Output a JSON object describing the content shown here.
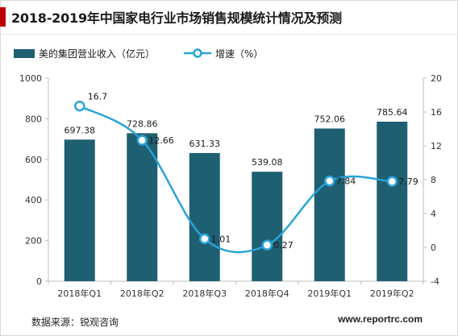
{
  "title": "2018-2019年中国家电行业市场销售规模统计情况及预测",
  "source": "数据来源：锐观咨询",
  "watermark": "www.reportrc.com",
  "colors": {
    "accent": "#c00000",
    "bar": "#1f5f72",
    "line": "#29a3d8",
    "axis": "#bfbfbf"
  },
  "chart_data": {
    "type": "bar",
    "categories": [
      "2018年Q1",
      "2018年Q2",
      "2018年Q3",
      "2018年Q4",
      "2019年Q1",
      "2019年Q2"
    ],
    "series": [
      {
        "name": "美的集团营业收入（亿元）",
        "type": "bar",
        "axis": "left",
        "values": [
          697.38,
          728.86,
          631.33,
          539.08,
          752.06,
          785.64
        ],
        "labels": [
          "697.38",
          "728.86",
          "631.33",
          "539.08",
          "752.06",
          "785.64"
        ]
      },
      {
        "name": "增速（%）",
        "type": "line",
        "axis": "right",
        "smooth": true,
        "marker": "circle-hollow",
        "values": [
          16.7,
          12.66,
          1.01,
          0.27,
          7.84,
          7.79
        ],
        "labels": [
          "16.7",
          "12.66",
          "1.01",
          "0.27",
          "7.84",
          "7.79"
        ]
      }
    ],
    "y_left": {
      "lim": [
        0,
        1000
      ],
      "ticks": [
        "0",
        "200",
        "400",
        "600",
        "800",
        "1000"
      ]
    },
    "y_right": {
      "lim": [
        -4,
        20
      ],
      "ticks": [
        "-4",
        "0",
        "4",
        "8",
        "12",
        "16",
        "20"
      ]
    },
    "legend": "top-left",
    "grid": false
  }
}
